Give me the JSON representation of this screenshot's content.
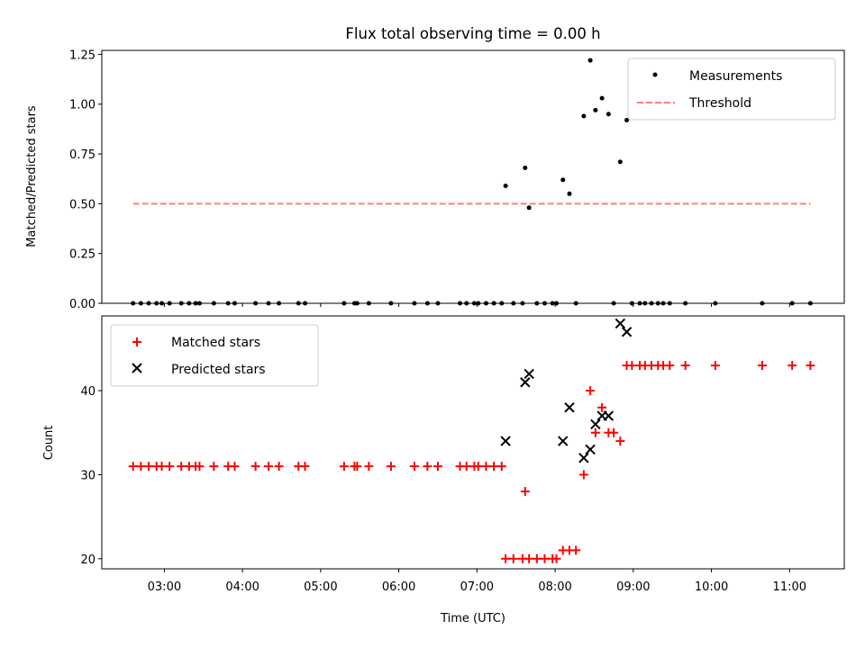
{
  "title": "Flux total observing time = 0.00 h",
  "colors": {
    "measurements": "#000000",
    "threshold": "#ff7f7f",
    "matched": "#ff0000",
    "predicted": "#000000"
  },
  "chart_data": [
    {
      "type": "scatter",
      "title": "Flux total observing time = 0.00 h",
      "xlabel": "",
      "ylabel": "Matched/Predicted stars",
      "xlim": [
        "02:12",
        "11:42"
      ],
      "ylim": [
        0,
        1.27
      ],
      "yticks": [
        "0.00",
        "0.25",
        "0.50",
        "0.75",
        "1.00",
        "1.25"
      ],
      "legend_position": "upper right",
      "grid": false,
      "series": [
        {
          "name": "Measurements",
          "marker": "dot",
          "points": [
            [
              "02:36",
              0
            ],
            [
              "02:42",
              0
            ],
            [
              "02:48",
              0
            ],
            [
              "02:54",
              0
            ],
            [
              "02:58",
              0
            ],
            [
              "03:04",
              0
            ],
            [
              "03:13",
              0
            ],
            [
              "03:19",
              0
            ],
            [
              "03:24",
              0
            ],
            [
              "03:27",
              0
            ],
            [
              "03:38",
              0
            ],
            [
              "03:49",
              0
            ],
            [
              "03:54",
              0
            ],
            [
              "04:10",
              0
            ],
            [
              "04:20",
              0
            ],
            [
              "04:28",
              0
            ],
            [
              "04:43",
              0
            ],
            [
              "04:48",
              0
            ],
            [
              "05:18",
              0
            ],
            [
              "05:26",
              0
            ],
            [
              "05:28",
              0
            ],
            [
              "05:37",
              0
            ],
            [
              "05:54",
              0
            ],
            [
              "06:12",
              0
            ],
            [
              "06:22",
              0
            ],
            [
              "06:30",
              0
            ],
            [
              "06:47",
              0
            ],
            [
              "06:52",
              0
            ],
            [
              "06:58",
              0
            ],
            [
              "07:01",
              0
            ],
            [
              "07:07",
              0
            ],
            [
              "07:13",
              0
            ],
            [
              "07:19",
              0
            ],
            [
              "07:22",
              0.59
            ],
            [
              "07:28",
              0
            ],
            [
              "07:35",
              0
            ],
            [
              "07:37",
              0.68
            ],
            [
              "07:40",
              0.48
            ],
            [
              "07:46",
              0
            ],
            [
              "07:52",
              0
            ],
            [
              "07:58",
              0
            ],
            [
              "08:01",
              0
            ],
            [
              "08:06",
              0.62
            ],
            [
              "08:11",
              0.55
            ],
            [
              "08:16",
              0
            ],
            [
              "08:22",
              0.94
            ],
            [
              "08:27",
              1.22
            ],
            [
              "08:31",
              0.97
            ],
            [
              "08:36",
              1.03
            ],
            [
              "08:41",
              0.95
            ],
            [
              "08:45",
              0
            ],
            [
              "08:50",
              0.71
            ],
            [
              "08:55",
              0.92
            ],
            [
              "08:59",
              0
            ],
            [
              "09:05",
              0
            ],
            [
              "09:09",
              0
            ],
            [
              "09:14",
              0
            ],
            [
              "09:19",
              0
            ],
            [
              "09:23",
              0
            ],
            [
              "09:28",
              0
            ],
            [
              "09:40",
              0
            ],
            [
              "10:03",
              0
            ],
            [
              "10:39",
              0
            ],
            [
              "11:02",
              0
            ],
            [
              "11:16",
              0
            ]
          ]
        },
        {
          "name": "Threshold",
          "line": "dashed",
          "points": [
            [
              "02:36",
              0.5
            ],
            [
              "11:16",
              0.5
            ]
          ]
        }
      ]
    },
    {
      "type": "scatter",
      "xlabel": "Time (UTC)",
      "ylabel": "Count",
      "xlim": [
        "02:12",
        "11:42"
      ],
      "ylim": [
        18.8,
        48.9
      ],
      "yticks": [
        "20",
        "30",
        "40"
      ],
      "xticks": [
        "03:00",
        "04:00",
        "05:00",
        "06:00",
        "07:00",
        "08:00",
        "09:00",
        "10:00",
        "11:00"
      ],
      "legend_position": "upper left",
      "grid": false,
      "series": [
        {
          "name": "Matched stars",
          "marker": "plus",
          "points": [
            [
              "02:36",
              31
            ],
            [
              "02:42",
              31
            ],
            [
              "02:48",
              31
            ],
            [
              "02:54",
              31
            ],
            [
              "02:58",
              31
            ],
            [
              "03:04",
              31
            ],
            [
              "03:13",
              31
            ],
            [
              "03:19",
              31
            ],
            [
              "03:24",
              31
            ],
            [
              "03:27",
              31
            ],
            [
              "03:38",
              31
            ],
            [
              "03:49",
              31
            ],
            [
              "03:54",
              31
            ],
            [
              "04:10",
              31
            ],
            [
              "04:20",
              31
            ],
            [
              "04:28",
              31
            ],
            [
              "04:43",
              31
            ],
            [
              "04:48",
              31
            ],
            [
              "05:18",
              31
            ],
            [
              "05:26",
              31
            ],
            [
              "05:28",
              31
            ],
            [
              "05:37",
              31
            ],
            [
              "05:54",
              31
            ],
            [
              "06:12",
              31
            ],
            [
              "06:22",
              31
            ],
            [
              "06:30",
              31
            ],
            [
              "06:47",
              31
            ],
            [
              "06:52",
              31
            ],
            [
              "06:58",
              31
            ],
            [
              "07:01",
              31
            ],
            [
              "07:07",
              31
            ],
            [
              "07:13",
              31
            ],
            [
              "07:19",
              31
            ],
            [
              "07:22",
              20
            ],
            [
              "07:28",
              20
            ],
            [
              "07:35",
              20
            ],
            [
              "07:37",
              28
            ],
            [
              "07:40",
              20
            ],
            [
              "07:46",
              20
            ],
            [
              "07:52",
              20
            ],
            [
              "07:58",
              20
            ],
            [
              "08:01",
              20
            ],
            [
              "08:06",
              21
            ],
            [
              "08:11",
              21
            ],
            [
              "08:16",
              21
            ],
            [
              "08:22",
              30
            ],
            [
              "08:27",
              40
            ],
            [
              "08:31",
              35
            ],
            [
              "08:36",
              38
            ],
            [
              "08:41",
              35
            ],
            [
              "08:45",
              35
            ],
            [
              "08:50",
              34
            ],
            [
              "08:55",
              43
            ],
            [
              "08:59",
              43
            ],
            [
              "09:05",
              43
            ],
            [
              "09:09",
              43
            ],
            [
              "09:14",
              43
            ],
            [
              "09:19",
              43
            ],
            [
              "09:23",
              43
            ],
            [
              "09:28",
              43
            ],
            [
              "09:40",
              43
            ],
            [
              "10:03",
              43
            ],
            [
              "10:39",
              43
            ],
            [
              "11:02",
              43
            ],
            [
              "11:16",
              43
            ]
          ]
        },
        {
          "name": "Predicted stars",
          "marker": "x",
          "points": [
            [
              "07:22",
              34
            ],
            [
              "07:37",
              41
            ],
            [
              "07:40",
              42
            ],
            [
              "08:06",
              34
            ],
            [
              "08:11",
              38
            ],
            [
              "08:22",
              32
            ],
            [
              "08:27",
              33
            ],
            [
              "08:31",
              36
            ],
            [
              "08:36",
              37
            ],
            [
              "08:41",
              37
            ],
            [
              "08:50",
              48
            ],
            [
              "08:55",
              47
            ]
          ]
        }
      ]
    }
  ]
}
